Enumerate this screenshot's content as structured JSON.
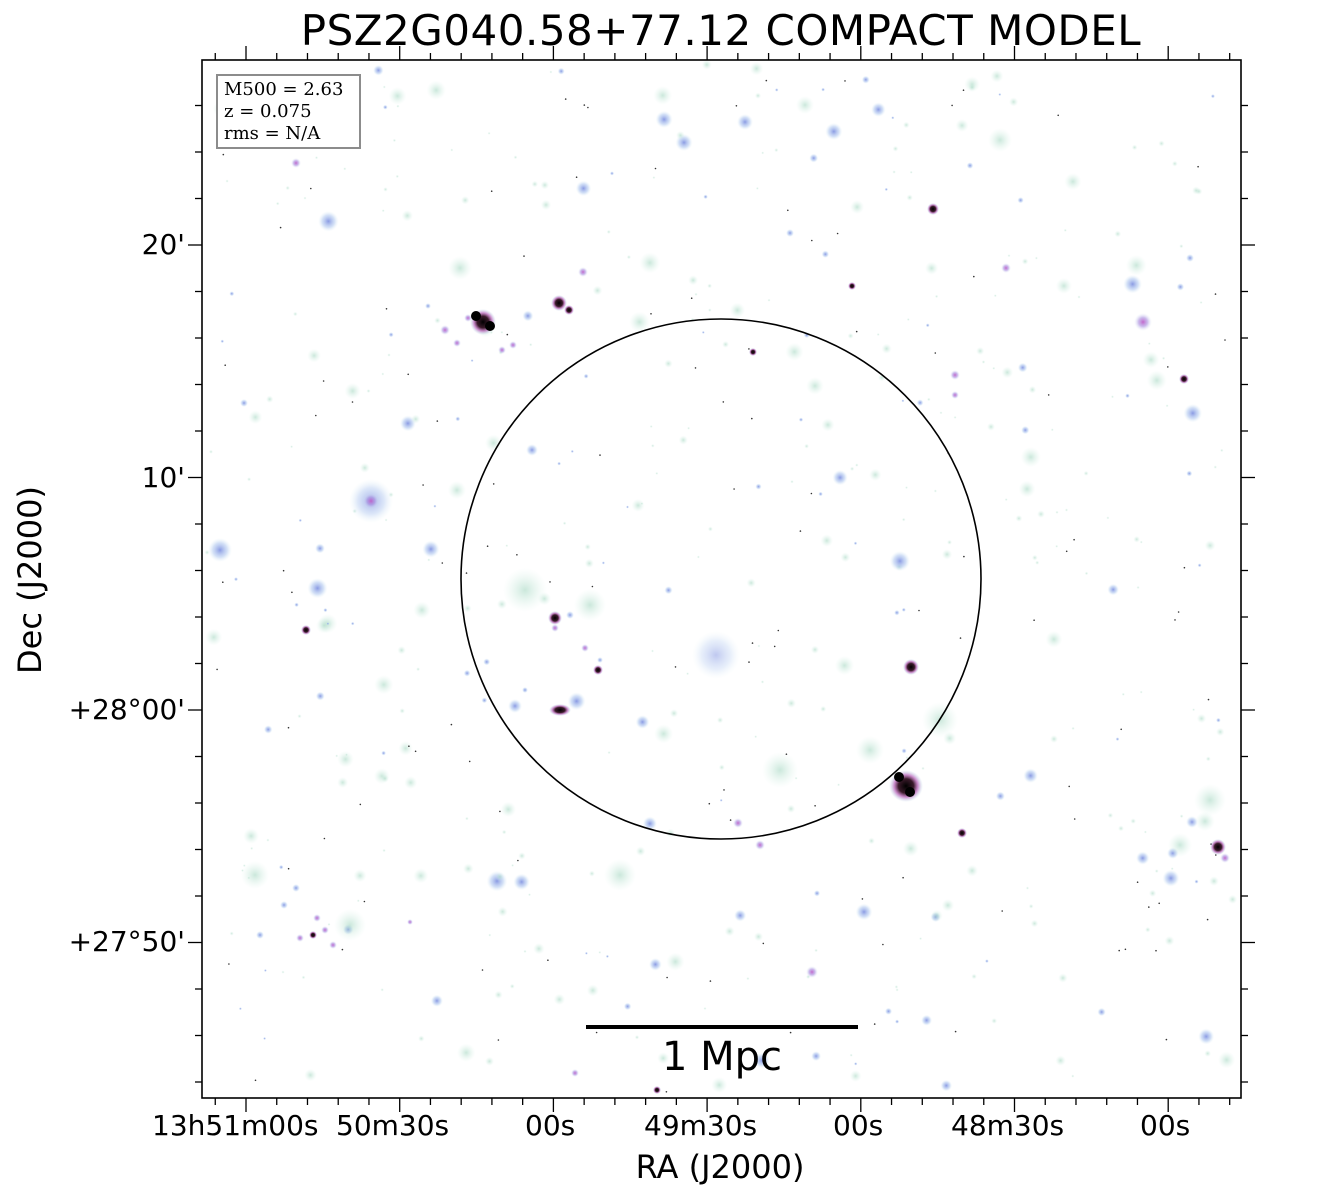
{
  "title": "PSZ2G040.58+77.12 COMPACT MODEL",
  "info": {
    "mass": "M500 = 2.63",
    "redshift": "z = 0.075",
    "rms": "rms = N/A"
  },
  "axes": {
    "xlabel": "RA (J2000)",
    "ylabel": "Dec (J2000)",
    "xticks": [
      "13h51m00s",
      "50m30s",
      "00s",
      "49m30s",
      "00s",
      "48m30s",
      "00s"
    ],
    "yticks": [
      "20'",
      "10'",
      "+28°00'",
      "+27°50'"
    ]
  },
  "scale_bar": {
    "label": "1 Mpc"
  },
  "colors": {
    "diffuse": "#a8d8c4",
    "compact_blue": "#8a9ee0",
    "compact_violet": "#c06cc8",
    "bright_core": "#000000"
  }
}
